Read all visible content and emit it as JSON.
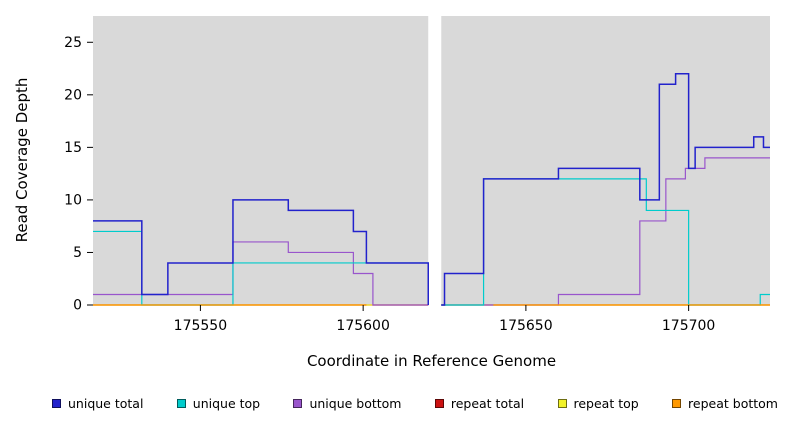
{
  "figure": {
    "y_axis_label": "Read Coverage Depth",
    "x_axis_label": "Coordinate in Reference Genome"
  },
  "chart_data": {
    "type": "line",
    "style": "step",
    "title": "",
    "xlabel": "Coordinate in Reference Genome",
    "ylabel": "Read Coverage Depth",
    "xlim": [
      175517,
      175725
    ],
    "ylim": [
      0,
      27.5
    ],
    "xticks": [
      175550,
      175600,
      175650,
      175700
    ],
    "yticks": [
      0,
      5,
      10,
      15,
      20,
      25
    ],
    "gap": [
      175620,
      175624
    ],
    "plot_bg": "#d9d9d9",
    "grid": false,
    "legend_position": "bottom",
    "series": [
      {
        "name": "repeat total",
        "color": "#cc1111",
        "segments": [
          [
            [
              175517,
              0
            ],
            [
              175620,
              0
            ]
          ],
          [
            [
              175624,
              0
            ],
            [
              175725,
              0
            ]
          ]
        ]
      },
      {
        "name": "repeat top",
        "color": "#f2f228",
        "segments": [
          [
            [
              175517,
              0
            ],
            [
              175620,
              0
            ]
          ],
          [
            [
              175624,
              0
            ],
            [
              175725,
              0
            ]
          ]
        ]
      },
      {
        "name": "unique bottom",
        "color": "#9955cc",
        "segments": [
          [
            [
              175517,
              1
            ],
            [
              175560,
              6
            ],
            [
              175577,
              5
            ],
            [
              175597,
              3
            ],
            [
              175603,
              0
            ],
            [
              175620,
              0
            ]
          ],
          [
            [
              175624,
              0
            ],
            [
              175660,
              1
            ],
            [
              175685,
              8
            ],
            [
              175693,
              12
            ],
            [
              175699,
              13
            ],
            [
              175705,
              14
            ],
            [
              175725,
              14
            ]
          ]
        ]
      },
      {
        "name": "unique top",
        "color": "#00cccc",
        "segments": [
          [
            [
              175517,
              7
            ],
            [
              175532,
              0
            ],
            [
              175560,
              4
            ],
            [
              175620,
              0
            ]
          ],
          [
            [
              175624,
              0
            ],
            [
              175637,
              12
            ],
            [
              175687,
              9
            ],
            [
              175700,
              0
            ],
            [
              175722,
              1
            ],
            [
              175725,
              1
            ]
          ]
        ]
      },
      {
        "name": "repeat bottom",
        "color": "#ff9900",
        "segments": [
          [
            [
              175517,
              0
            ],
            [
              175601,
              0
            ]
          ],
          [
            [
              175640,
              0
            ],
            [
              175725,
              0
            ]
          ]
        ]
      },
      {
        "name": "unique total",
        "color": "#2222cc",
        "segments": [
          [
            [
              175517,
              8
            ],
            [
              175532,
              1
            ],
            [
              175540,
              4
            ],
            [
              175560,
              10
            ],
            [
              175577,
              9
            ],
            [
              175597,
              7
            ],
            [
              175601,
              4
            ],
            [
              175620,
              0
            ]
          ],
          [
            [
              175624,
              0
            ],
            [
              175625,
              3
            ],
            [
              175637,
              12
            ],
            [
              175660,
              13
            ],
            [
              175685,
              10
            ],
            [
              175691,
              21
            ],
            [
              175696,
              22
            ],
            [
              175700,
              13
            ],
            [
              175702,
              15
            ],
            [
              175720,
              16
            ],
            [
              175723,
              15
            ],
            [
              175725,
              15
            ]
          ]
        ]
      }
    ],
    "legend": [
      {
        "label": "unique total",
        "color": "#2222cc"
      },
      {
        "label": "unique top",
        "color": "#00cccc"
      },
      {
        "label": "unique bottom",
        "color": "#9955cc"
      },
      {
        "label": "repeat total",
        "color": "#cc1111"
      },
      {
        "label": "repeat top",
        "color": "#f2f228"
      },
      {
        "label": "repeat bottom",
        "color": "#ff9900"
      }
    ]
  }
}
